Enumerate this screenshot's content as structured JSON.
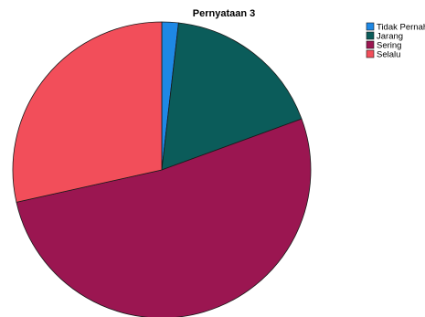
{
  "chart_data": {
    "type": "pie",
    "title": "Pernyataan 3",
    "categories": [
      "Tidak Pernah",
      "Jarang",
      "Sering",
      "Selalu"
    ],
    "values": [
      1.8,
      17.6,
      52.1,
      28.5
    ],
    "colors": [
      "#1E88E5",
      "#0B5C5A",
      "#9B1651",
      "#F24E5A"
    ],
    "start_angle_deg": 0,
    "direction": "clockwise",
    "legend_position": "top-right",
    "slice_labels": []
  }
}
